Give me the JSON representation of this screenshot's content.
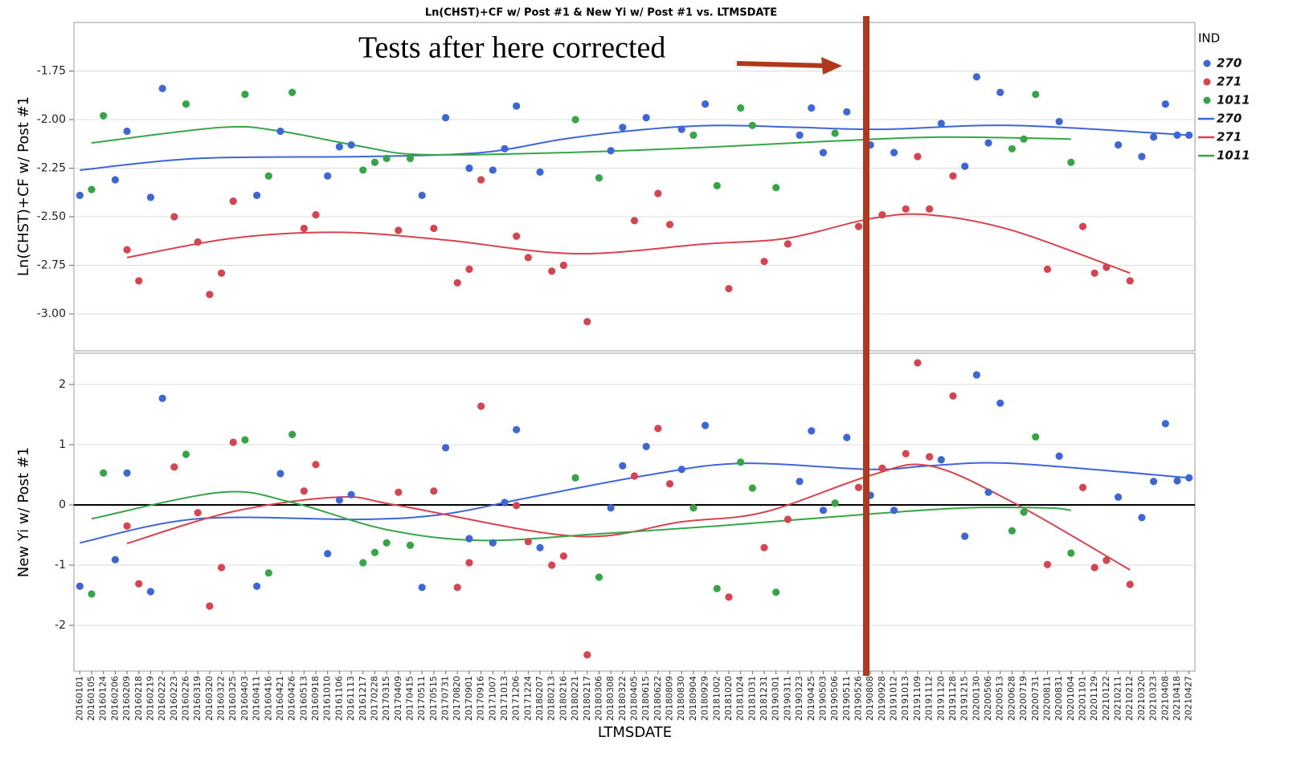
{
  "chart_data": {
    "type": "scatter",
    "title": "Ln(CHST)+CF w/ Post #1 & New Yi w/ Post #1 vs. LTMSDATE",
    "x_label": "LTMSDATE",
    "annotation": "Tests after here corrected",
    "legend_title": "IND",
    "legend_position": "right",
    "grid": true,
    "categories": [
      "20160101",
      "20160105",
      "20160124",
      "20160206",
      "20160209",
      "20160218",
      "20160219",
      "20160222",
      "20160223",
      "20160226",
      "20160319",
      "20160320",
      "20160322",
      "20160325",
      "20160403",
      "20160411",
      "20160416",
      "20160421",
      "20160426",
      "20160513",
      "20160918",
      "20161010",
      "20161106",
      "20161113",
      "20161217",
      "20170228",
      "20170315",
      "20170409",
      "20170415",
      "20170511",
      "20170515",
      "20170731",
      "20170820",
      "20170901",
      "20170916",
      "20171007",
      "20171013",
      "20171206",
      "20171224",
      "20180207",
      "20180213",
      "20180216",
      "20180221",
      "20180217",
      "20180306",
      "20180308",
      "20180322",
      "20180405",
      "20180615",
      "20180622",
      "20180809",
      "20180830",
      "20180904",
      "20180929",
      "20181002",
      "20181020",
      "20181024",
      "20181031",
      "20181231",
      "20190301",
      "20190311",
      "20190323",
      "20190425",
      "20190503",
      "20190506",
      "20190511",
      "20190526",
      "20190808",
      "20190928",
      "20191012",
      "20191013",
      "20191109",
      "20191112",
      "20191120",
      "20191128",
      "20191215",
      "20200130",
      "20200506",
      "20200513",
      "20200628",
      "20200719",
      "20200731",
      "20200811",
      "20200831",
      "20201004",
      "20201101",
      "20201129",
      "20210122",
      "20210211",
      "20210212",
      "20210320",
      "20210323",
      "20210408",
      "20210418",
      "20210427"
    ],
    "panels": [
      {
        "y_label": "Ln(CHST)+CF w/ Post #1",
        "ylim": [
          -3.19,
          -1.5
        ],
        "yticks": [
          -1.75,
          {
            "value": -2,
            "label": "-2.00"
          },
          -2.25,
          {
            "value": -2.5,
            "label": "-2.50"
          },
          -2.75,
          {
            "value": -3,
            "label": "-3.00"
          }
        ],
        "series": [
          {
            "name": "270",
            "color": "#3d66d8",
            "mode": "markers",
            "values": [
              -2.39,
              null,
              null,
              -2.31,
              -2.06,
              null,
              -2.4,
              -1.84,
              null,
              null,
              null,
              null,
              null,
              null,
              null,
              -2.39,
              null,
              -2.06,
              null,
              null,
              null,
              -2.29,
              -2.14,
              -2.13,
              null,
              null,
              null,
              null,
              null,
              -2.39,
              null,
              -1.99,
              null,
              -2.25,
              null,
              -2.26,
              -2.15,
              -1.93,
              null,
              -2.27,
              null,
              null,
              null,
              null,
              null,
              -2.16,
              -2.04,
              null,
              -1.99,
              null,
              null,
              -2.05,
              null,
              -1.92,
              null,
              null,
              null,
              null,
              null,
              null,
              null,
              -2.08,
              -1.94,
              -2.17,
              null,
              -1.96,
              null,
              -2.13,
              null,
              -2.17,
              null,
              null,
              null,
              -2.02,
              null,
              -2.24,
              -1.78,
              -2.12,
              -1.86,
              null,
              null,
              null,
              null,
              -2.01,
              null,
              null,
              null,
              null,
              -2.13,
              null,
              -2.19,
              -2.09,
              -1.92,
              -2.08,
              -2.08
            ]
          },
          {
            "name": "271",
            "color": "#d9434f",
            "mode": "markers",
            "values": [
              null,
              null,
              null,
              null,
              -2.67,
              -2.83,
              null,
              null,
              -2.5,
              null,
              -2.63,
              -2.9,
              -2.79,
              -2.42,
              null,
              null,
              null,
              null,
              null,
              -2.56,
              -2.49,
              null,
              null,
              null,
              null,
              null,
              null,
              -2.57,
              null,
              null,
              -2.56,
              null,
              -2.84,
              -2.77,
              -2.31,
              null,
              null,
              -2.6,
              -2.71,
              null,
              -2.78,
              -2.75,
              null,
              -3.04,
              null,
              null,
              null,
              -2.52,
              null,
              -2.38,
              -2.54,
              null,
              null,
              null,
              null,
              -2.87,
              null,
              null,
              -2.73,
              null,
              -2.64,
              null,
              null,
              null,
              null,
              null,
              -2.55,
              null,
              -2.49,
              null,
              -2.46,
              -2.19,
              -2.46,
              null,
              -2.29,
              null,
              null,
              null,
              null,
              null,
              null,
              null,
              -2.77,
              null,
              null,
              -2.55,
              -2.79,
              -2.76,
              null,
              -2.83,
              null,
              null,
              null,
              null,
              null
            ]
          },
          {
            "name": "1011",
            "color": "#35a646",
            "mode": "markers",
            "values": [
              null,
              -2.36,
              -1.98,
              null,
              null,
              null,
              null,
              null,
              null,
              -1.92,
              null,
              null,
              null,
              null,
              -1.87,
              null,
              -2.29,
              null,
              -1.86,
              null,
              null,
              null,
              null,
              null,
              -2.26,
              -2.22,
              -2.2,
              null,
              -2.2,
              null,
              null,
              null,
              null,
              null,
              null,
              null,
              null,
              null,
              null,
              null,
              null,
              null,
              -2.0,
              null,
              -2.3,
              null,
              null,
              null,
              null,
              null,
              null,
              null,
              -2.08,
              null,
              -2.34,
              null,
              -1.94,
              -2.03,
              null,
              -2.35,
              null,
              null,
              null,
              null,
              -2.07,
              null,
              null,
              null,
              null,
              null,
              null,
              null,
              null,
              null,
              null,
              null,
              null,
              null,
              null,
              -2.15,
              -2.1,
              -1.87,
              null,
              null,
              -2.22,
              null,
              null,
              null,
              null,
              null,
              null,
              null,
              null,
              null,
              null
            ]
          },
          {
            "name": "270",
            "color": "#3d66d8",
            "mode": "line",
            "x": [
              "20160101",
              "20160319",
              "20161217",
              "20170916",
              "20180216",
              "20180615",
              "20181002",
              "20190323",
              "20190928",
              "20200628",
              "20210427"
            ],
            "values": [
              -2.26,
              -2.2,
              -2.19,
              -2.17,
              -2.1,
              -2.05,
              -2.03,
              -2.04,
              -2.05,
              -2.03,
              -2.08
            ]
          },
          {
            "name": "271",
            "color": "#d9434f",
            "mode": "line",
            "x": [
              "20160209",
              "20160325",
              "20161106",
              "20170731",
              "20180221",
              "20180929",
              "20190311",
              "20190808",
              "20191112",
              "20200628",
              "20210212"
            ],
            "values": [
              -2.71,
              -2.61,
              -2.58,
              -2.62,
              -2.69,
              -2.64,
              -2.61,
              -2.51,
              -2.49,
              -2.57,
              -2.79
            ]
          },
          {
            "name": "1011",
            "color": "#35a646",
            "mode": "line",
            "x": [
              "20160105",
              "20160322",
              "20160421",
              "20161217",
              "20170511",
              "20180216",
              "20181002",
              "20190506",
              "20191120",
              "20201004"
            ],
            "values": [
              -2.12,
              -2.04,
              -2.06,
              -2.14,
              -2.18,
              -2.17,
              -2.14,
              -2.11,
              -2.09,
              -2.1
            ]
          }
        ]
      },
      {
        "y_label": "New Yi w/ Post #1",
        "ylim": [
          -2.76,
          2.52
        ],
        "yticks": [
          2,
          1,
          0,
          -1,
          -2
        ],
        "reference_line": 0,
        "series": [
          {
            "name": "270",
            "color": "#3d66d8",
            "mode": "markers",
            "values": [
              -1.35,
              null,
              null,
              -0.91,
              0.53,
              null,
              -1.44,
              1.77,
              null,
              null,
              null,
              null,
              null,
              null,
              null,
              -1.35,
              null,
              0.52,
              null,
              null,
              null,
              -0.81,
              0.08,
              0.17,
              null,
              null,
              null,
              null,
              null,
              -1.37,
              null,
              0.95,
              null,
              -0.56,
              null,
              -0.63,
              0.04,
              1.25,
              null,
              -0.71,
              null,
              null,
              null,
              null,
              null,
              -0.05,
              0.65,
              null,
              0.97,
              null,
              null,
              0.59,
              null,
              1.32,
              null,
              null,
              null,
              null,
              null,
              null,
              null,
              0.39,
              1.23,
              -0.09,
              null,
              1.12,
              null,
              0.16,
              null,
              -0.09,
              null,
              null,
              null,
              0.75,
              null,
              -0.52,
              2.16,
              0.21,
              1.69,
              null,
              null,
              null,
              null,
              0.81,
              null,
              null,
              null,
              null,
              0.13,
              null,
              -0.21,
              0.39,
              1.35,
              0.4,
              0.45
            ]
          },
          {
            "name": "271",
            "color": "#d9434f",
            "mode": "markers",
            "values": [
              null,
              null,
              null,
              null,
              -0.35,
              -1.31,
              null,
              null,
              0.63,
              null,
              -0.13,
              -1.68,
              -1.04,
              1.04,
              null,
              null,
              null,
              null,
              null,
              0.23,
              0.67,
              null,
              null,
              null,
              null,
              null,
              null,
              0.21,
              null,
              null,
              0.23,
              null,
              -1.37,
              -0.96,
              1.64,
              null,
              null,
              -0.01,
              -0.61,
              null,
              -1.0,
              -0.85,
              null,
              -2.49,
              null,
              null,
              null,
              0.48,
              null,
              1.27,
              0.35,
              null,
              null,
              null,
              null,
              -1.53,
              null,
              null,
              -0.71,
              null,
              -0.24,
              null,
              null,
              null,
              null,
              null,
              0.29,
              null,
              0.61,
              null,
              0.85,
              2.36,
              0.8,
              null,
              1.81,
              null,
              null,
              null,
              null,
              null,
              null,
              null,
              -0.99,
              null,
              null,
              0.29,
              -1.04,
              -0.92,
              null,
              -1.32,
              null,
              null,
              null,
              null,
              null
            ]
          },
          {
            "name": "1011",
            "color": "#35a646",
            "mode": "markers",
            "values": [
              null,
              -1.48,
              0.53,
              null,
              null,
              null,
              null,
              null,
              null,
              0.84,
              null,
              null,
              null,
              null,
              1.08,
              null,
              -1.13,
              null,
              1.17,
              null,
              null,
              null,
              null,
              null,
              -0.96,
              -0.79,
              -0.63,
              null,
              -0.67,
              null,
              null,
              null,
              null,
              null,
              null,
              null,
              null,
              null,
              null,
              null,
              null,
              null,
              0.45,
              null,
              -1.2,
              null,
              null,
              null,
              null,
              null,
              null,
              null,
              -0.05,
              null,
              -1.39,
              null,
              0.71,
              0.28,
              null,
              -1.45,
              null,
              null,
              null,
              null,
              0.03,
              null,
              null,
              null,
              null,
              null,
              null,
              null,
              null,
              null,
              null,
              null,
              null,
              null,
              null,
              -0.43,
              -0.12,
              1.13,
              null,
              null,
              -0.8,
              null,
              null,
              null,
              null,
              null,
              null,
              null,
              null,
              null,
              null
            ]
          },
          {
            "name": "270",
            "color": "#3d66d8",
            "mode": "line",
            "x": [
              "20160101",
              "20160319",
              "20161217",
              "20170731",
              "20171224",
              "20180615",
              "20181024",
              "20190808",
              "20191112",
              "20200628",
              "20210427"
            ],
            "values": [
              -0.63,
              -0.23,
              -0.24,
              -0.15,
              0.12,
              0.49,
              0.69,
              0.59,
              0.65,
              0.69,
              0.45
            ]
          },
          {
            "name": "271",
            "color": "#d9434f",
            "mode": "line",
            "x": [
              "20160209",
              "20160325",
              "20161106",
              "20170409",
              "20180221",
              "20180830",
              "20181231",
              "20190808",
              "20191112",
              "20200628",
              "20210212"
            ],
            "values": [
              -0.64,
              -0.11,
              0.13,
              -0.01,
              -0.52,
              -0.28,
              -0.12,
              0.49,
              0.65,
              0.05,
              -1.08
            ]
          },
          {
            "name": "1011",
            "color": "#35a646",
            "mode": "line",
            "x": [
              "20160105",
              "20160322",
              "20160426",
              "20170315",
              "20170916",
              "20180306",
              "20181002",
              "20190808",
              "20191215",
              "20200811",
              "20201004"
            ],
            "values": [
              -0.23,
              0.21,
              0.04,
              -0.41,
              -0.59,
              -0.48,
              -0.35,
              -0.15,
              -0.05,
              -0.05,
              -0.09
            ]
          }
        ]
      }
    ]
  }
}
